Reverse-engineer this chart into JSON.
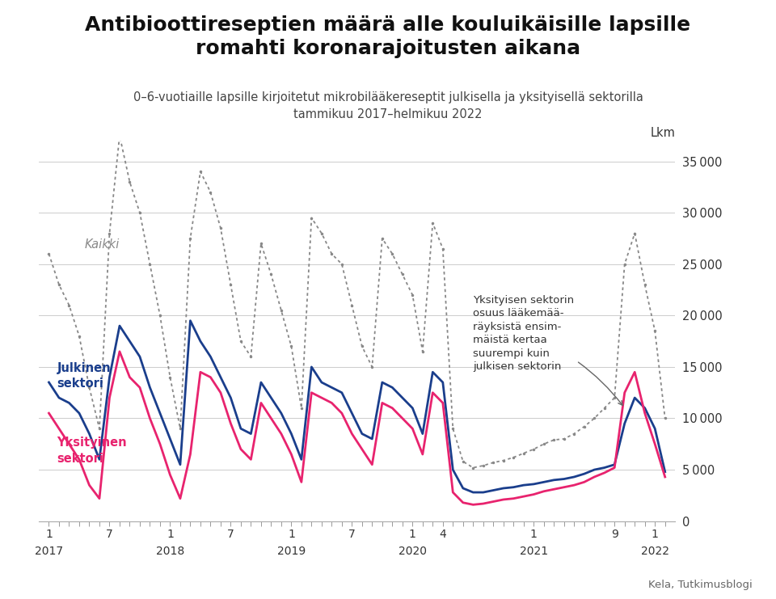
{
  "title_line1": "Antibioottireseptien määrä alle kouluikäisille lapsille",
  "title_line2": "romahti koronarajoitusten aikana",
  "subtitle_line1": "0–6-vuotiaille lapsille kirjoitetut mikrobilääkereseptit julkisella ja yksityisellä sektorilla",
  "subtitle_line2": "tammikuu 2017–helmikuu 2022",
  "ylabel_right": "Lkm",
  "source": "Kela, Tutkimusblogi",
  "annotation_text": "Yksityisen sektorin\nosuus lääkemää-\nräyksistä ensim-\nmäistä kertaa\nsuurempi kuin\njulkisen sektorin",
  "label_kaikki": "Kaikki",
  "label_julkinen": "Julkinen\nsektori",
  "label_yksityinen": "Yksityinen\nsektori",
  "color_kaikki": "#888888",
  "color_julkinen": "#1a3e8c",
  "color_yksityinen": "#e8236e",
  "background_color": "#ffffff",
  "ylim": [
    0,
    37000
  ],
  "yticks": [
    0,
    5000,
    10000,
    15000,
    20000,
    25000,
    30000,
    35000
  ],
  "ytick_labels": [
    "0",
    "5 000",
    "10 000",
    "15 000",
    "20 000",
    "25 000",
    "30 000",
    "35 000"
  ],
  "julkinen": [
    13500,
    12000,
    11500,
    10500,
    8500,
    6000,
    14000,
    19000,
    17500,
    16000,
    13000,
    10500,
    8000,
    5500,
    19500,
    17500,
    16000,
    14000,
    12000,
    9000,
    8500,
    13500,
    12000,
    10500,
    8500,
    6000,
    15000,
    13500,
    13000,
    12500,
    10500,
    8500,
    8000,
    13500,
    13000,
    12000,
    11000,
    8500,
    14500,
    13500,
    5000,
    3200,
    2800,
    2800,
    3000,
    3200,
    3300,
    3500,
    3600,
    3800,
    4000,
    4100,
    4300,
    4600,
    5000,
    5200,
    5500,
    9500,
    12000,
    11000,
    9000,
    4800
  ],
  "yksityinen": [
    10500,
    9000,
    7500,
    6000,
    3500,
    2200,
    12000,
    16500,
    14000,
    13000,
    10000,
    7500,
    4500,
    2200,
    6500,
    14500,
    14000,
    12500,
    9500,
    7000,
    6000,
    11500,
    10000,
    8500,
    6500,
    3800,
    12500,
    12000,
    11500,
    10500,
    8500,
    7000,
    5500,
    11500,
    11000,
    10000,
    9000,
    6500,
    12500,
    11500,
    2800,
    1800,
    1600,
    1700,
    1900,
    2100,
    2200,
    2400,
    2600,
    2900,
    3100,
    3300,
    3500,
    3800,
    4300,
    4700,
    5200,
    12500,
    14500,
    10500,
    7500,
    4300
  ],
  "kaikki": [
    26000,
    23000,
    21000,
    18000,
    13000,
    9000,
    28000,
    37500,
    33000,
    30000,
    25000,
    20000,
    14000,
    9000,
    27500,
    34000,
    32000,
    28500,
    23000,
    17500,
    16000,
    27000,
    24000,
    20500,
    17000,
    11000,
    29500,
    28000,
    26000,
    25000,
    21000,
    17000,
    15000,
    27500,
    26000,
    24000,
    22000,
    16500,
    29000,
    26500,
    9000,
    5800,
    5200,
    5400,
    5700,
    5900,
    6200,
    6600,
    7000,
    7500,
    7900,
    8000,
    8500,
    9200,
    10000,
    11000,
    12000,
    25000,
    28000,
    23000,
    18500,
    10000
  ],
  "n_months": 62,
  "labeled_ticks": {
    "0": "1",
    "6": "7",
    "12": "1",
    "18": "7",
    "24": "1",
    "30": "7",
    "36": "1",
    "39": "4",
    "48": "1",
    "56": "9",
    "60": "1"
  },
  "year_labels": {
    "0": "2017",
    "12": "2018",
    "24": "2019",
    "36": "2020",
    "48": "2021",
    "60": "2022"
  }
}
